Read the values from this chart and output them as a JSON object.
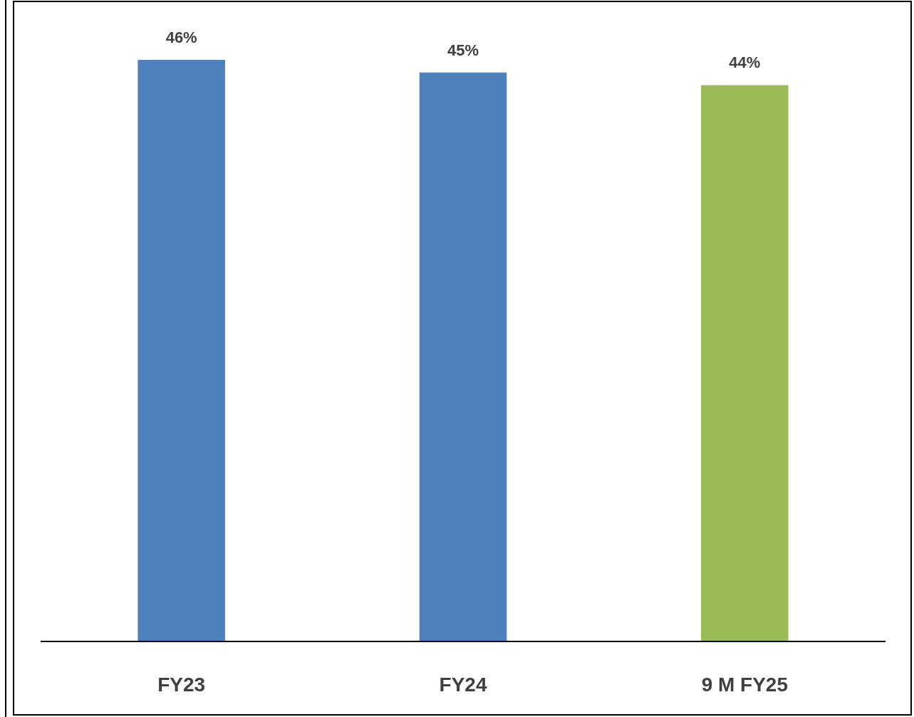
{
  "chart_data": {
    "type": "bar",
    "categories": [
      "FY23",
      "FY24",
      "9 M FY25"
    ],
    "values": [
      46,
      45,
      44
    ],
    "colors": [
      "#4f81bd",
      "#4f81bd",
      "#9bbb59"
    ],
    "value_labels": [
      "46%",
      "45%",
      "44%"
    ]
  }
}
